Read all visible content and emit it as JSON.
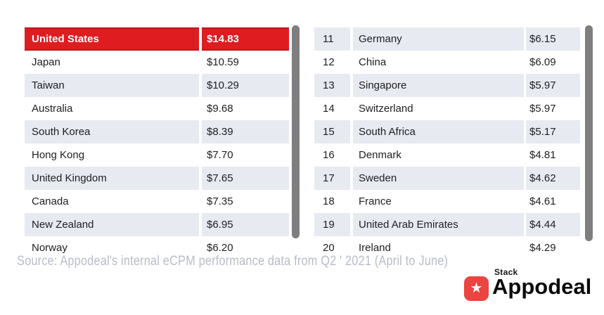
{
  "left_table": {
    "rows": [
      {
        "country": "United States",
        "value": "$14.83",
        "highlight": true
      },
      {
        "country": "Japan",
        "value": "$10.59"
      },
      {
        "country": "Taiwan",
        "value": "$10.29"
      },
      {
        "country": "Australia",
        "value": "$9.68"
      },
      {
        "country": "South Korea",
        "value": "$8.39"
      },
      {
        "country": "Hong Kong",
        "value": "$7.70"
      },
      {
        "country": "United Kingdom",
        "value": "$7.65"
      },
      {
        "country": "Canada",
        "value": "$7.35"
      },
      {
        "country": "New Zealand",
        "value": "$6.95"
      },
      {
        "country": "Norway",
        "value": "$6.20"
      }
    ]
  },
  "right_table": {
    "rows": [
      {
        "rank": "11",
        "country": "Germany",
        "value": "$6.15"
      },
      {
        "rank": "12",
        "country": "China",
        "value": "$6.09"
      },
      {
        "rank": "13",
        "country": "Singapore",
        "value": "$5.97"
      },
      {
        "rank": "14",
        "country": "Switzerland",
        "value": "$5.97"
      },
      {
        "rank": "15",
        "country": "South Africa",
        "value": "$5.17"
      },
      {
        "rank": "16",
        "country": "Denmark",
        "value": "$4.81"
      },
      {
        "rank": "17",
        "country": "Sweden",
        "value": "$4.62"
      },
      {
        "rank": "18",
        "country": "France",
        "value": "$4.61"
      },
      {
        "rank": "19",
        "country": "United Arab Emirates",
        "value": "$4.44"
      },
      {
        "rank": "20",
        "country": "Ireland",
        "value": "$4.29"
      }
    ]
  },
  "source_note": "Source: Appodeal's internal eCPM performance data from Q2 ' 2021 (April to June)",
  "logo": {
    "stack_label": "Stack",
    "brand_name": "Appodeal",
    "star_glyph": "★"
  },
  "colors": {
    "highlight": "#df1d20",
    "highlight_border": "#c0151a",
    "row_alt": "#e7eaf1",
    "scrollbar": "#7e7e7e",
    "source_text": "#b7bdc9",
    "logo_red": "#ea4540"
  }
}
